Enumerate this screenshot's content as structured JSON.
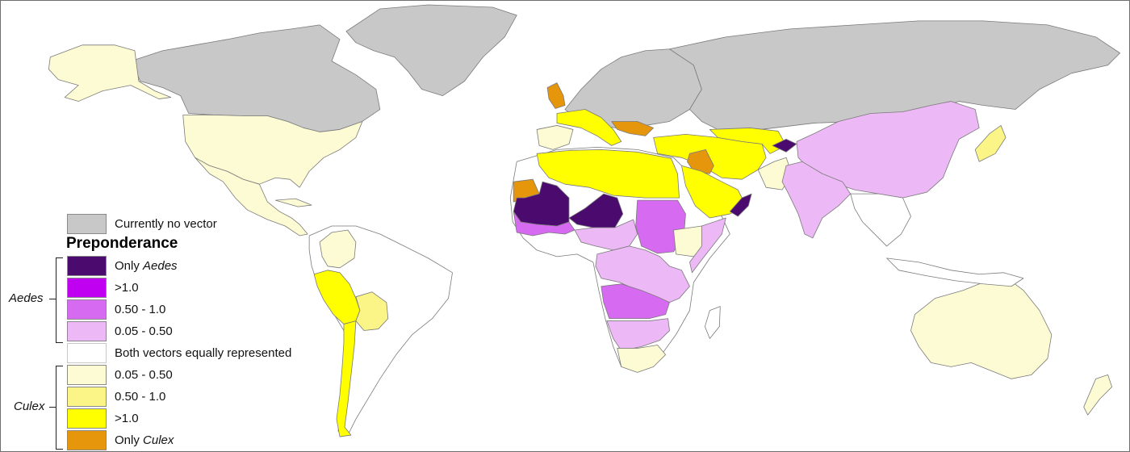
{
  "colors": {
    "no_vector": "#c8c8c8",
    "only_aedes": "#4a0a6e",
    "aedes_gt1": "#c000f0",
    "aedes_050_1": "#d66af0",
    "aedes_005_050": "#ecb8f5",
    "equal": "#ffffff",
    "culex_005_050": "#fdfbd3",
    "culex_050_1": "#fbf587",
    "culex_gt1": "#ffff00",
    "only_culex": "#e5960a",
    "border": "#7a7a7a"
  },
  "legend": {
    "no_vector_label": "Currently no vector",
    "title": "Preponderance",
    "aedes_group": "Aedes",
    "culex_group": "Culex",
    "items": [
      {
        "text": "Only ",
        "italic": "Aedes",
        "color_key": "only_aedes"
      },
      {
        "text": ">1.0",
        "italic": "",
        "color_key": "aedes_gt1"
      },
      {
        "text": "0.50 - 1.0",
        "italic": "",
        "color_key": "aedes_050_1"
      },
      {
        "text": "0.05 - 0.50",
        "italic": "",
        "color_key": "aedes_005_050"
      },
      {
        "text": "Both vectors equally represented",
        "italic": "",
        "color_key": "equal"
      },
      {
        "text": "0.05 - 0.50",
        "italic": "",
        "color_key": "culex_005_050"
      },
      {
        "text": "0.50 - 1.0",
        "italic": "",
        "color_key": "culex_050_1"
      },
      {
        "text": ">1.0",
        "italic": "",
        "color_key": "culex_gt1"
      },
      {
        "text": "Only ",
        "italic": "Culex",
        "color_key": "only_culex"
      }
    ]
  }
}
